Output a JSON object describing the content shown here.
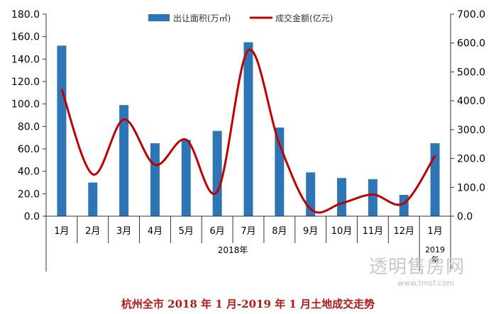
{
  "chart_data": {
    "type": "bar+line",
    "categories": [
      "1月",
      "2月",
      "3月",
      "4月",
      "5月",
      "6月",
      "7月",
      "8月",
      "9月",
      "10月",
      "11月",
      "12月",
      "1月"
    ],
    "year_groups": [
      {
        "label": "2018年",
        "start": 0,
        "end": 11
      },
      {
        "label": "2019年",
        "start": 12,
        "end": 12
      }
    ],
    "series": [
      {
        "name": "出让面积(万㎡)",
        "type": "bar",
        "axis": "left",
        "color": "#2e75b6",
        "values": [
          152,
          30,
          99,
          65,
          68,
          76,
          155,
          79,
          39,
          34,
          33,
          19,
          65
        ]
      },
      {
        "name": "成交金额(亿元)",
        "type": "line",
        "axis": "right",
        "color": "#c00000",
        "values": [
          440,
          145,
          335,
          178,
          265,
          85,
          575,
          250,
          25,
          45,
          75,
          45,
          210
        ]
      }
    ],
    "left_axis": {
      "min": 0,
      "max": 180,
      "step": 20,
      "ticks": [
        "0.0",
        "20.0",
        "40.0",
        "60.0",
        "80.0",
        "100.0",
        "120.0",
        "140.0",
        "160.0",
        "180.0"
      ]
    },
    "right_axis": {
      "min": 0,
      "max": 700,
      "step": 100,
      "ticks": [
        "0.0",
        "100.0",
        "200.0",
        "300.0",
        "400.0",
        "500.0",
        "600.0",
        "700.0"
      ]
    },
    "legend_position": "top",
    "grid": false
  },
  "watermark": {
    "text": "透明售房网",
    "url": "www.tmsf.com"
  },
  "caption": "杭州全市 2018 年 1 月-2019 年 1 月土地成交走势"
}
